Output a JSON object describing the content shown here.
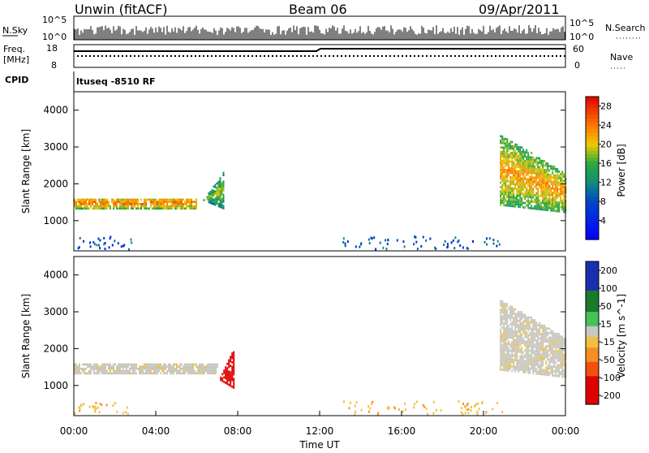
{
  "header": {
    "station": "Unwin (fitACF)",
    "beam": "Beam 06",
    "date": "09/Apr/2011"
  },
  "strip_panels": {
    "nsky": {
      "label": "N.Sky",
      "tick_top": "10^5",
      "tick_bottom": "10^0",
      "right_top": "10^5",
      "right_bottom": "10^0",
      "right_label": "N.Search"
    },
    "freq": {
      "label_line1": "Freq.",
      "label_line2": "[MHz]",
      "tick_top": "18",
      "tick_bottom": "8",
      "right_top": "60",
      "right_bottom": "0",
      "right_label": "Nave"
    },
    "cpid": {
      "label": "CPID",
      "value": "ltuseq -8510 RF"
    }
  },
  "chart_data": [
    {
      "type": "heatmap",
      "title": "",
      "xlabel": "Time UT",
      "ylabel": "Slant Range [km]",
      "xlim": [
        0,
        24
      ],
      "ylim": [
        180,
        4500
      ],
      "x_ticks": [
        "00:00",
        "04:00",
        "08:00",
        "12:00",
        "16:00",
        "20:00",
        "00:00"
      ],
      "y_ticks": [
        1000,
        2000,
        3000,
        4000
      ],
      "colorbar": {
        "label": "Power [dB]",
        "ticks": [
          4,
          8,
          12,
          16,
          20,
          24,
          28
        ],
        "range": [
          0,
          30
        ]
      },
      "regions": [
        {
          "name": "daytime band",
          "t_start": 0.0,
          "t_end": 6.0,
          "range_low": 1300,
          "range_high": 1600,
          "power": 20
        },
        {
          "name": "rising echo",
          "t_start": 6.0,
          "t_end": 7.3,
          "range_low": 1300,
          "range_high": 2300,
          "power": 14
        },
        {
          "name": "evening echoes",
          "t_start": 20.8,
          "t_end": 24.0,
          "range_low": 1200,
          "range_high": 3300,
          "power": 18
        }
      ]
    },
    {
      "type": "heatmap",
      "title": "",
      "xlabel": "Time UT",
      "ylabel": "Slant Range [km]",
      "xlim": [
        0,
        24
      ],
      "ylim": [
        180,
        4500
      ],
      "x_ticks": [
        "00:00",
        "04:00",
        "08:00",
        "12:00",
        "16:00",
        "20:00",
        "00:00"
      ],
      "y_ticks": [
        1000,
        2000,
        3000,
        4000
      ],
      "colorbar": {
        "label": "Velocity [m s^-1]",
        "ticks": [
          200,
          100,
          50,
          15,
          -15,
          -50,
          -100,
          -200
        ],
        "range": [
          -250,
          250
        ]
      },
      "regions": [
        {
          "name": "ground scatter band",
          "t_start": 0.0,
          "t_end": 7.0,
          "range_low": 1300,
          "range_high": 1600,
          "velocity": 0
        },
        {
          "name": "negative velocity patch",
          "t_start": 6.9,
          "t_end": 7.8,
          "range_low": 900,
          "range_high": 2000,
          "velocity": -200
        },
        {
          "name": "evening ground scatter",
          "t_start": 20.8,
          "t_end": 24.0,
          "range_low": 1200,
          "range_high": 3300,
          "velocity": 0
        }
      ]
    }
  ]
}
